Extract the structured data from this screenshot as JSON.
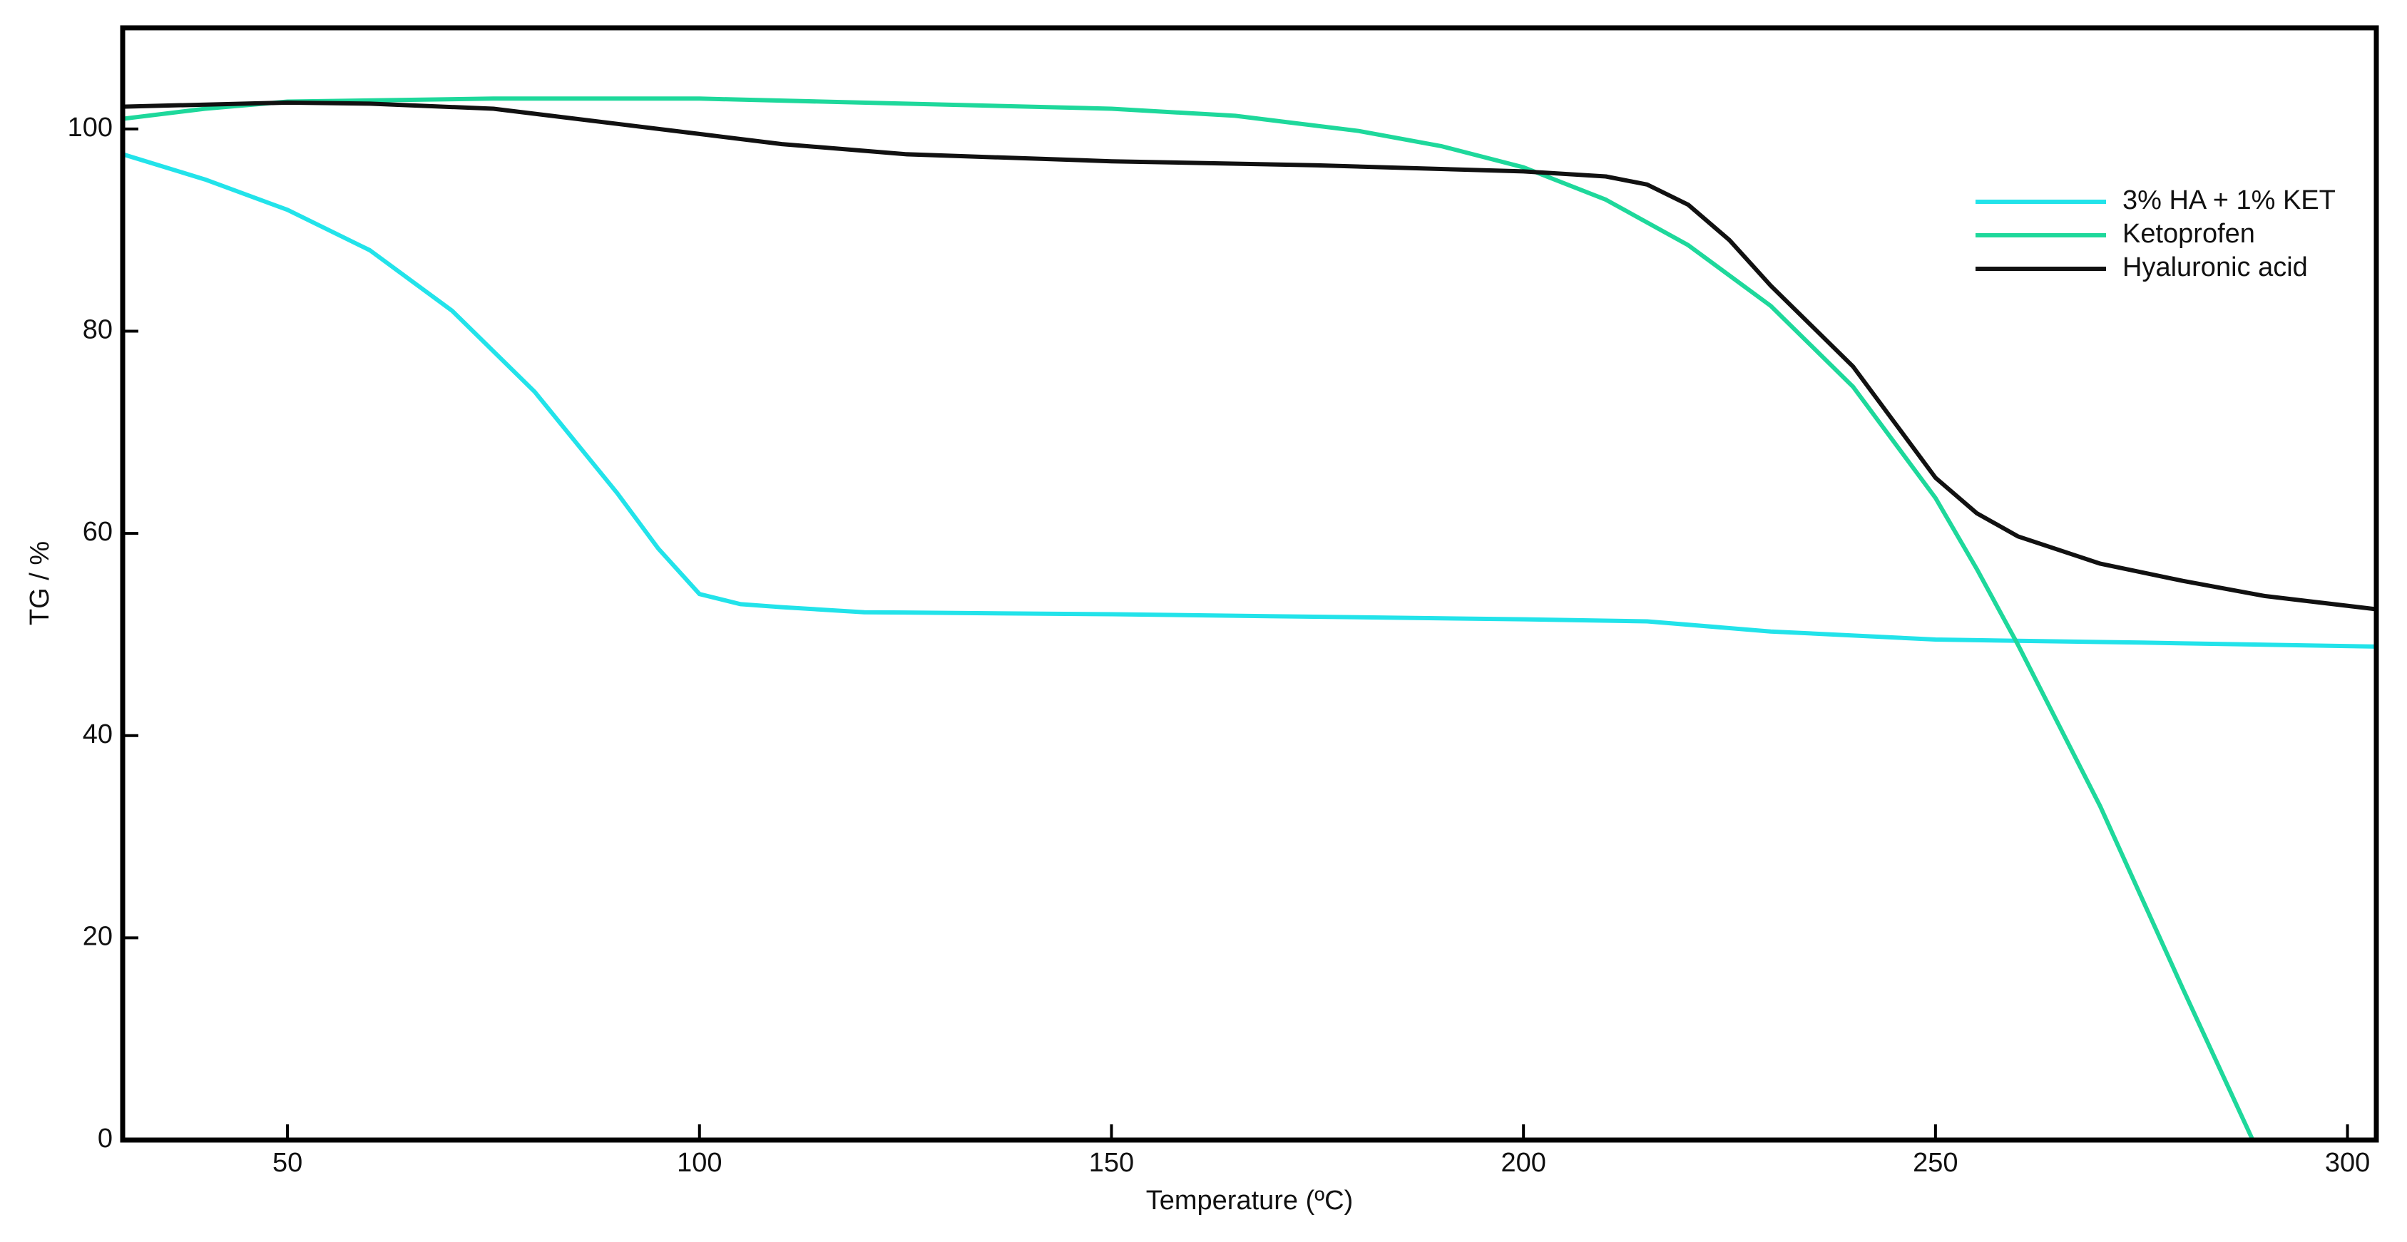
{
  "chart_data": {
    "type": "line",
    "xlabel": "Temperature (ºC)",
    "ylabel": "TG / %",
    "xlim": [
      30,
      303.5
    ],
    "ylim": [
      0,
      110
    ],
    "xticks": [
      50,
      100,
      150,
      200,
      250,
      300
    ],
    "yticks": [
      0,
      20,
      40,
      60,
      80,
      100
    ],
    "legend": "upper right",
    "series": [
      {
        "name": "3% HA + 1% KET",
        "color": "#22e3ea",
        "x": [
          30,
          40,
          50,
          60,
          70,
          80,
          90,
          95,
          100,
          105,
          110,
          120,
          150,
          200,
          215,
          230,
          250,
          275,
          303.5
        ],
        "values": [
          97.5,
          95,
          92,
          88,
          82,
          74,
          64,
          58.5,
          54,
          53,
          52.7,
          52.2,
          52,
          51.5,
          51.3,
          50.3,
          49.5,
          49.2,
          48.8
        ]
      },
      {
        "name": "Ketoprofen",
        "color": "#1ed89b",
        "x": [
          30,
          40,
          50,
          75,
          100,
          125,
          150,
          165,
          180,
          190,
          200,
          210,
          220,
          230,
          240,
          250,
          255,
          260,
          270,
          280,
          288.5
        ],
        "values": [
          101,
          102,
          102.7,
          103,
          103,
          102.5,
          102,
          101.3,
          99.8,
          98.3,
          96.2,
          93,
          88.5,
          82.5,
          74.5,
          63.5,
          56.5,
          49,
          33,
          15,
          0
        ]
      },
      {
        "name": "Hyaluronic acid",
        "color": "#111111",
        "x": [
          30,
          50,
          60,
          75,
          90,
          100,
          110,
          125,
          150,
          175,
          200,
          210,
          215,
          220,
          225,
          230,
          240,
          245,
          250,
          255,
          260,
          270,
          280,
          290,
          303.5
        ],
        "values": [
          102.2,
          102.6,
          102.5,
          102,
          100.5,
          99.5,
          98.5,
          97.5,
          96.8,
          96.4,
          95.8,
          95.3,
          94.5,
          92.5,
          89,
          84.5,
          76.5,
          71,
          65.5,
          62,
          59.7,
          57,
          55.3,
          53.8,
          52.5
        ]
      }
    ]
  }
}
